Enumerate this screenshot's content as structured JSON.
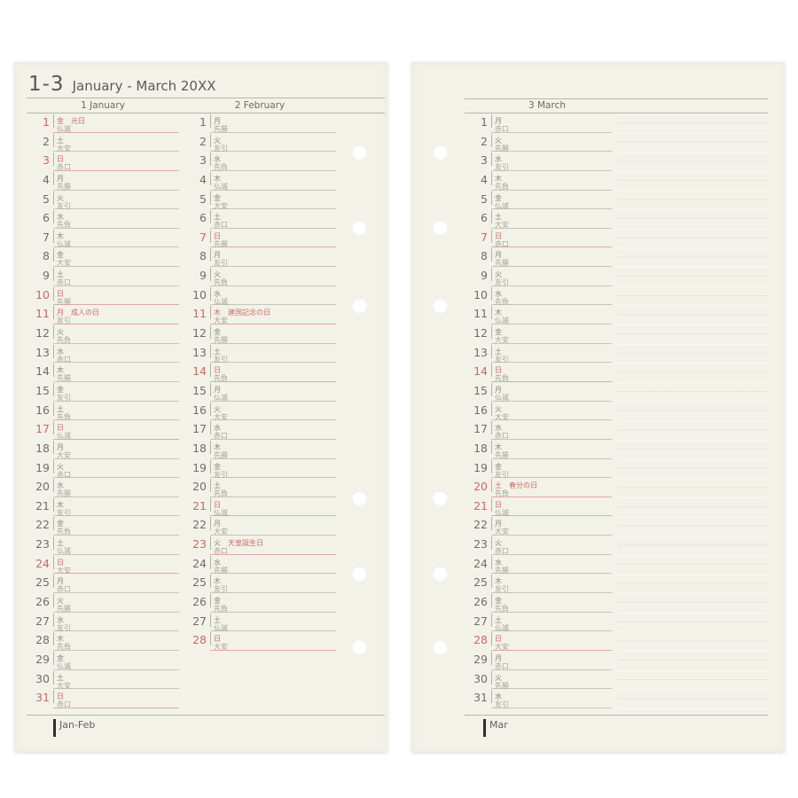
{
  "page_title": {
    "range": "1-3",
    "label": "January - March 20XX"
  },
  "footer_tabs": {
    "left": "Jan-Feb",
    "right": "Mar"
  },
  "colors": {
    "page_bg": "#f3f2e9",
    "line_gray": "#c6c5bc",
    "red": "#c96a64",
    "red_line": "#dfa9a5"
  },
  "columns": [
    {
      "key": "january",
      "header": "1 January",
      "days": [
        {
          "d": 1,
          "w": "金",
          "rokuyo": "仏滅",
          "note": "元日",
          "red": true
        },
        {
          "d": 2,
          "w": "土",
          "rokuyo": "大安",
          "red": false
        },
        {
          "d": 3,
          "w": "日",
          "rokuyo": "赤口",
          "red": true
        },
        {
          "d": 4,
          "w": "月",
          "rokuyo": "先勝",
          "red": false
        },
        {
          "d": 5,
          "w": "火",
          "rokuyo": "友引",
          "red": false
        },
        {
          "d": 6,
          "w": "水",
          "rokuyo": "先負",
          "red": false
        },
        {
          "d": 7,
          "w": "木",
          "rokuyo": "仏滅",
          "red": false
        },
        {
          "d": 8,
          "w": "金",
          "rokuyo": "大安",
          "red": false
        },
        {
          "d": 9,
          "w": "土",
          "rokuyo": "赤口",
          "red": false
        },
        {
          "d": 10,
          "w": "日",
          "rokuyo": "先勝",
          "red": true
        },
        {
          "d": 11,
          "w": "月",
          "rokuyo": "友引",
          "note": "成人の日",
          "red": true
        },
        {
          "d": 12,
          "w": "火",
          "rokuyo": "先負",
          "red": false
        },
        {
          "d": 13,
          "w": "水",
          "rokuyo": "赤口",
          "red": false
        },
        {
          "d": 14,
          "w": "木",
          "rokuyo": "先勝",
          "red": false
        },
        {
          "d": 15,
          "w": "金",
          "rokuyo": "友引",
          "red": false
        },
        {
          "d": 16,
          "w": "土",
          "rokuyo": "先負",
          "red": false
        },
        {
          "d": 17,
          "w": "日",
          "rokuyo": "仏滅",
          "red": true
        },
        {
          "d": 18,
          "w": "月",
          "rokuyo": "大安",
          "red": false
        },
        {
          "d": 19,
          "w": "火",
          "rokuyo": "赤口",
          "red": false
        },
        {
          "d": 20,
          "w": "水",
          "rokuyo": "先勝",
          "red": false
        },
        {
          "d": 21,
          "w": "木",
          "rokuyo": "友引",
          "red": false
        },
        {
          "d": 22,
          "w": "金",
          "rokuyo": "先負",
          "red": false
        },
        {
          "d": 23,
          "w": "土",
          "rokuyo": "仏滅",
          "red": false
        },
        {
          "d": 24,
          "w": "日",
          "rokuyo": "大安",
          "red": true
        },
        {
          "d": 25,
          "w": "月",
          "rokuyo": "赤口",
          "red": false
        },
        {
          "d": 26,
          "w": "火",
          "rokuyo": "先勝",
          "red": false
        },
        {
          "d": 27,
          "w": "水",
          "rokuyo": "友引",
          "red": false
        },
        {
          "d": 28,
          "w": "木",
          "rokuyo": "先負",
          "red": false
        },
        {
          "d": 29,
          "w": "金",
          "rokuyo": "仏滅",
          "red": false
        },
        {
          "d": 30,
          "w": "土",
          "rokuyo": "大安",
          "red": false
        },
        {
          "d": 31,
          "w": "日",
          "rokuyo": "赤口",
          "red": true
        }
      ]
    },
    {
      "key": "february",
      "header": "2 February",
      "days": [
        {
          "d": 1,
          "w": "月",
          "rokuyo": "先勝",
          "red": false
        },
        {
          "d": 2,
          "w": "火",
          "rokuyo": "友引",
          "red": false
        },
        {
          "d": 3,
          "w": "水",
          "rokuyo": "先負",
          "red": false
        },
        {
          "d": 4,
          "w": "木",
          "rokuyo": "仏滅",
          "red": false
        },
        {
          "d": 5,
          "w": "金",
          "rokuyo": "大安",
          "red": false
        },
        {
          "d": 6,
          "w": "土",
          "rokuyo": "赤口",
          "red": false
        },
        {
          "d": 7,
          "w": "日",
          "rokuyo": "先勝",
          "red": true
        },
        {
          "d": 8,
          "w": "月",
          "rokuyo": "友引",
          "red": false
        },
        {
          "d": 9,
          "w": "火",
          "rokuyo": "先負",
          "red": false
        },
        {
          "d": 10,
          "w": "水",
          "rokuyo": "仏滅",
          "red": false
        },
        {
          "d": 11,
          "w": "木",
          "rokuyo": "大安",
          "note": "建国記念の日",
          "red": true
        },
        {
          "d": 12,
          "w": "金",
          "rokuyo": "先勝",
          "red": false
        },
        {
          "d": 13,
          "w": "土",
          "rokuyo": "友引",
          "red": false
        },
        {
          "d": 14,
          "w": "日",
          "rokuyo": "先負",
          "red": true
        },
        {
          "d": 15,
          "w": "月",
          "rokuyo": "仏滅",
          "red": false
        },
        {
          "d": 16,
          "w": "火",
          "rokuyo": "大安",
          "red": false
        },
        {
          "d": 17,
          "w": "水",
          "rokuyo": "赤口",
          "red": false
        },
        {
          "d": 18,
          "w": "木",
          "rokuyo": "先勝",
          "red": false
        },
        {
          "d": 19,
          "w": "金",
          "rokuyo": "友引",
          "red": false
        },
        {
          "d": 20,
          "w": "土",
          "rokuyo": "先負",
          "red": false
        },
        {
          "d": 21,
          "w": "日",
          "rokuyo": "仏滅",
          "red": true
        },
        {
          "d": 22,
          "w": "月",
          "rokuyo": "大安",
          "red": false
        },
        {
          "d": 23,
          "w": "火",
          "rokuyo": "赤口",
          "note": "天皇誕生日",
          "red": true
        },
        {
          "d": 24,
          "w": "水",
          "rokuyo": "先勝",
          "red": false
        },
        {
          "d": 25,
          "w": "木",
          "rokuyo": "友引",
          "red": false
        },
        {
          "d": 26,
          "w": "金",
          "rokuyo": "先負",
          "red": false
        },
        {
          "d": 27,
          "w": "土",
          "rokuyo": "仏滅",
          "red": false
        },
        {
          "d": 28,
          "w": "日",
          "rokuyo": "大安",
          "red": true
        }
      ]
    },
    {
      "key": "march",
      "header": "3 March",
      "days": [
        {
          "d": 1,
          "w": "月",
          "rokuyo": "赤口",
          "red": false
        },
        {
          "d": 2,
          "w": "火",
          "rokuyo": "先勝",
          "red": false
        },
        {
          "d": 3,
          "w": "水",
          "rokuyo": "友引",
          "red": false
        },
        {
          "d": 4,
          "w": "木",
          "rokuyo": "先負",
          "red": false
        },
        {
          "d": 5,
          "w": "金",
          "rokuyo": "仏滅",
          "red": false
        },
        {
          "d": 6,
          "w": "土",
          "rokuyo": "大安",
          "red": false
        },
        {
          "d": 7,
          "w": "日",
          "rokuyo": "赤口",
          "red": true
        },
        {
          "d": 8,
          "w": "月",
          "rokuyo": "先勝",
          "red": false
        },
        {
          "d": 9,
          "w": "火",
          "rokuyo": "友引",
          "red": false
        },
        {
          "d": 10,
          "w": "水",
          "rokuyo": "先負",
          "red": false
        },
        {
          "d": 11,
          "w": "木",
          "rokuyo": "仏滅",
          "red": false
        },
        {
          "d": 12,
          "w": "金",
          "rokuyo": "大安",
          "red": false
        },
        {
          "d": 13,
          "w": "土",
          "rokuyo": "友引",
          "red": false
        },
        {
          "d": 14,
          "w": "日",
          "rokuyo": "先負",
          "red": true
        },
        {
          "d": 15,
          "w": "月",
          "rokuyo": "仏滅",
          "red": false
        },
        {
          "d": 16,
          "w": "火",
          "rokuyo": "大安",
          "red": false
        },
        {
          "d": 17,
          "w": "水",
          "rokuyo": "赤口",
          "red": false
        },
        {
          "d": 18,
          "w": "木",
          "rokuyo": "先勝",
          "red": false
        },
        {
          "d": 19,
          "w": "金",
          "rokuyo": "友引",
          "red": false
        },
        {
          "d": 20,
          "w": "土",
          "rokuyo": "先負",
          "note": "春分の日",
          "red": true
        },
        {
          "d": 21,
          "w": "日",
          "rokuyo": "仏滅",
          "red": true
        },
        {
          "d": 22,
          "w": "月",
          "rokuyo": "大安",
          "red": false
        },
        {
          "d": 23,
          "w": "火",
          "rokuyo": "赤口",
          "red": false
        },
        {
          "d": 24,
          "w": "水",
          "rokuyo": "先勝",
          "red": false
        },
        {
          "d": 25,
          "w": "木",
          "rokuyo": "友引",
          "red": false
        },
        {
          "d": 26,
          "w": "金",
          "rokuyo": "先負",
          "red": false
        },
        {
          "d": 27,
          "w": "土",
          "rokuyo": "仏滅",
          "red": false
        },
        {
          "d": 28,
          "w": "日",
          "rokuyo": "大安",
          "red": true
        },
        {
          "d": 29,
          "w": "月",
          "rokuyo": "赤口",
          "red": false
        },
        {
          "d": 30,
          "w": "火",
          "rokuyo": "先勝",
          "red": false
        },
        {
          "d": 31,
          "w": "水",
          "rokuyo": "友引",
          "red": false
        }
      ]
    }
  ]
}
